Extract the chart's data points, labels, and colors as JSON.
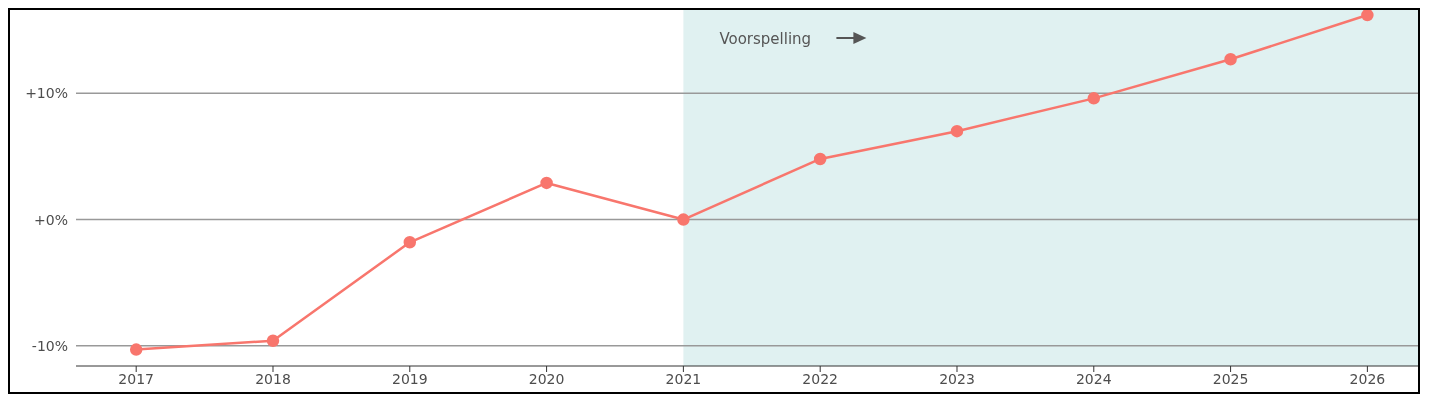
{
  "chart_data": {
    "type": "line",
    "x": [
      2017,
      2018,
      2019,
      2020,
      2021,
      2022,
      2023,
      2024,
      2025,
      2026
    ],
    "series": [
      {
        "color": "#f8766d",
        "values": [
          -10.3,
          -9.6,
          -1.8,
          2.9,
          0,
          4.8,
          7.0,
          9.6,
          12.7,
          16.2
        ]
      }
    ],
    "xlim": [
      2016.56,
      2026.37
    ],
    "xticks": [
      2017,
      2018,
      2019,
      2020,
      2021,
      2022,
      2023,
      2024,
      2025,
      2026
    ],
    "ylim": [
      -11.6,
      16.6
    ],
    "yticks": [
      {
        "value": -10,
        "label": "-10%"
      },
      {
        "value": 0,
        "label": "+0%"
      },
      {
        "value": 10,
        "label": "+10%"
      }
    ],
    "grid": "y",
    "marker": "circle",
    "line_style": "solid",
    "legend": false,
    "bands": [
      {
        "axis": "x",
        "from": 2021,
        "to": 2026.37,
        "label": "Voorspelling",
        "color": "#e0f1f1"
      }
    ]
  }
}
